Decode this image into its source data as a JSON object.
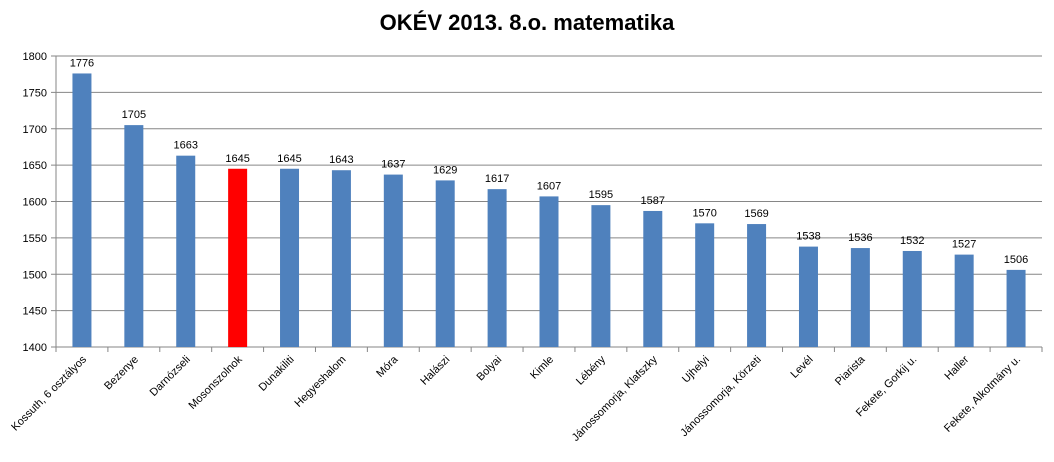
{
  "chart_data": {
    "type": "bar",
    "title": "OKÉV 2013. 8.o. matematika",
    "xlabel": "",
    "ylabel": "",
    "ylim": [
      1400,
      1800
    ],
    "yticks": [
      1400,
      1450,
      1500,
      1550,
      1600,
      1650,
      1700,
      1750,
      1800
    ],
    "grid": true,
    "legend": "none",
    "categories": [
      "Kossuth, 6 osztályos",
      "Bezenye",
      "Darnózseli",
      "Mosonszolnok",
      "Dunakiliti",
      "Hegyeshalom",
      "Móra",
      "Halászi",
      "Bolyai",
      "Kimle",
      "Lébény",
      "Jánossomorja, Klafszky",
      "Ujhelyi",
      "Jánossomorja, Körzeti",
      "Levél",
      "Piarista",
      "Fekete, Gorkij u.",
      "Haller",
      "Fekete, Alkotmány u."
    ],
    "values": [
      1776,
      1705,
      1663,
      1645,
      1645,
      1643,
      1637,
      1629,
      1617,
      1607,
      1595,
      1587,
      1570,
      1569,
      1538,
      1536,
      1532,
      1527,
      1506
    ],
    "bar_color": "#4F81BD",
    "highlight_color": "#FF0000",
    "highlight_category": "Mosonszolnok"
  }
}
